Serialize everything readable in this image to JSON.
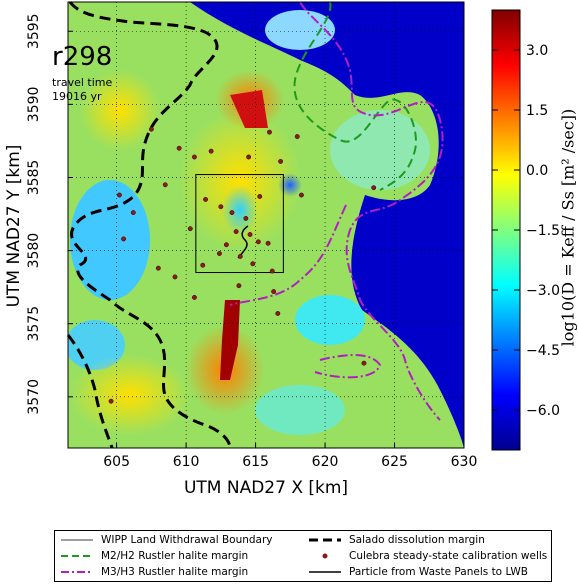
{
  "chart_data": {
    "type": "heatmap",
    "title": "r298",
    "annotation_lines": [
      "travel time",
      "19016 yr"
    ],
    "xlabel": "UTM NAD27 X [km]",
    "ylabel": "UTM NAD27 Y [km]",
    "xlim": [
      601.5,
      630
    ],
    "ylim": [
      3566.5,
      3597
    ],
    "x_ticks": [
      605,
      610,
      615,
      620,
      625,
      630
    ],
    "y_ticks": [
      3570,
      3575,
      3580,
      3585,
      3590,
      3595
    ],
    "grid": true,
    "colorbar": {
      "label": "log10(D = Keff / Ss [m² /sec])",
      "range": [
        -7,
        4
      ],
      "ticks": [
        3.0,
        1.5,
        0.0,
        -1.5,
        -3.0,
        -4.5,
        -6.0
      ],
      "tick_labels": [
        "3.0",
        "1.5",
        "0.0",
        "−1.5",
        "−3.0",
        "−4.5",
        "−6.0"
      ],
      "colormap": "jet"
    },
    "wipp_boundary": {
      "x": [
        610.7,
        617
      ],
      "y": [
        3578.5,
        3585.2
      ]
    },
    "wells": [
      [
        607.5,
        3588.3
      ],
      [
        609.5,
        3587
      ],
      [
        610.6,
        3586.4
      ],
      [
        611.4,
        3583.5
      ],
      [
        612.5,
        3583
      ],
      [
        613.3,
        3582.6
      ],
      [
        614.3,
        3582.2
      ],
      [
        613.6,
        3581.3
      ],
      [
        614.6,
        3581.1
      ],
      [
        612.9,
        3580.4
      ],
      [
        615.2,
        3580.6
      ],
      [
        612.4,
        3579.8
      ],
      [
        613.9,
        3579.6
      ],
      [
        615.9,
        3580.5
      ],
      [
        614.8,
        3579.1
      ],
      [
        616.2,
        3578.6
      ],
      [
        611.2,
        3579.0
      ],
      [
        609.2,
        3578.2
      ],
      [
        606.2,
        3582.6
      ],
      [
        605.2,
        3583.8
      ],
      [
        605.5,
        3580.8
      ],
      [
        608.0,
        3578.8
      ],
      [
        610.6,
        3576.8
      ],
      [
        613.8,
        3577.6
      ],
      [
        616.3,
        3577.2
      ],
      [
        618.3,
        3583.8
      ],
      [
        610.3,
        3581.5
      ],
      [
        611.8,
        3586.8
      ],
      [
        614.5,
        3586.4
      ],
      [
        616.8,
        3586.1
      ],
      [
        618.0,
        3587.8
      ],
      [
        616.0,
        3588.1
      ],
      [
        623.5,
        3584.3
      ],
      [
        622.8,
        3572.3
      ],
      [
        604.6,
        3569.7
      ],
      [
        616.6,
        3575.7
      ],
      [
        608.5,
        3584.5
      ],
      [
        615.3,
        3583.7
      ]
    ]
  },
  "legend": {
    "items": [
      {
        "key": "wipp",
        "label": "WIPP Land Withdrawal Boundary"
      },
      {
        "key": "m2h2",
        "label": "M2/H2 Rustler halite margin"
      },
      {
        "key": "m3h3",
        "label": "M3/H3 Rustler halite margin"
      },
      {
        "key": "salado",
        "label": "Salado dissolution margin"
      },
      {
        "key": "wells",
        "label": "Culebra steady-state calibration wells"
      },
      {
        "key": "particle",
        "label": "Particle from Waste Panels to LWB"
      }
    ]
  },
  "colors": {
    "background_blue": "#0000c8",
    "salado": "#000000",
    "m2h2": "#1e9a1e",
    "m3h3": "#b020c0",
    "well": "#8b1a1a"
  }
}
